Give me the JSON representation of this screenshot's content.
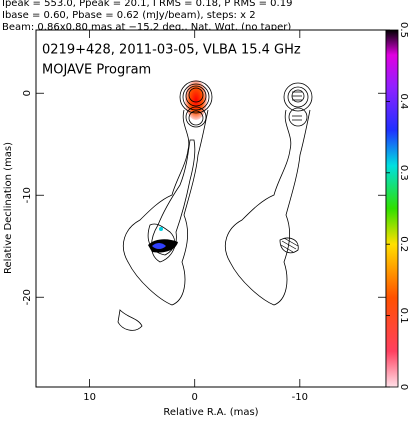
{
  "chart_data": {
    "type": "contour-map",
    "header": [
      "Ipeak = 553.0, Ppeak = 20.1, I RMS = 0.18, P RMS = 0.19",
      "Ibase = 0.60, Pbase = 0.62 (mJy/beam), steps: x 2",
      "Beam: 0.86x0.80 mas at −15.2 deg., Nat. Wgt. (no taper)"
    ],
    "title": "0219+428, 2011-03-05, VLBA 15.4 GHz",
    "subtitle": "MOJAVE Program",
    "xlabel": "Relative R.A. (mas)",
    "ylabel": "Relative Declination (mas)",
    "xlim": [
      15.1,
      -18.2
    ],
    "xticks": [
      10,
      0,
      -10
    ],
    "ylim": [
      -28.8,
      6.2
    ],
    "yticks": [
      0,
      -10,
      -20
    ],
    "colorbar": {
      "lim": [
        0,
        0.5
      ],
      "ticks": [
        0,
        0.1,
        0.2,
        0.3,
        0.4,
        0.5
      ]
    }
  }
}
